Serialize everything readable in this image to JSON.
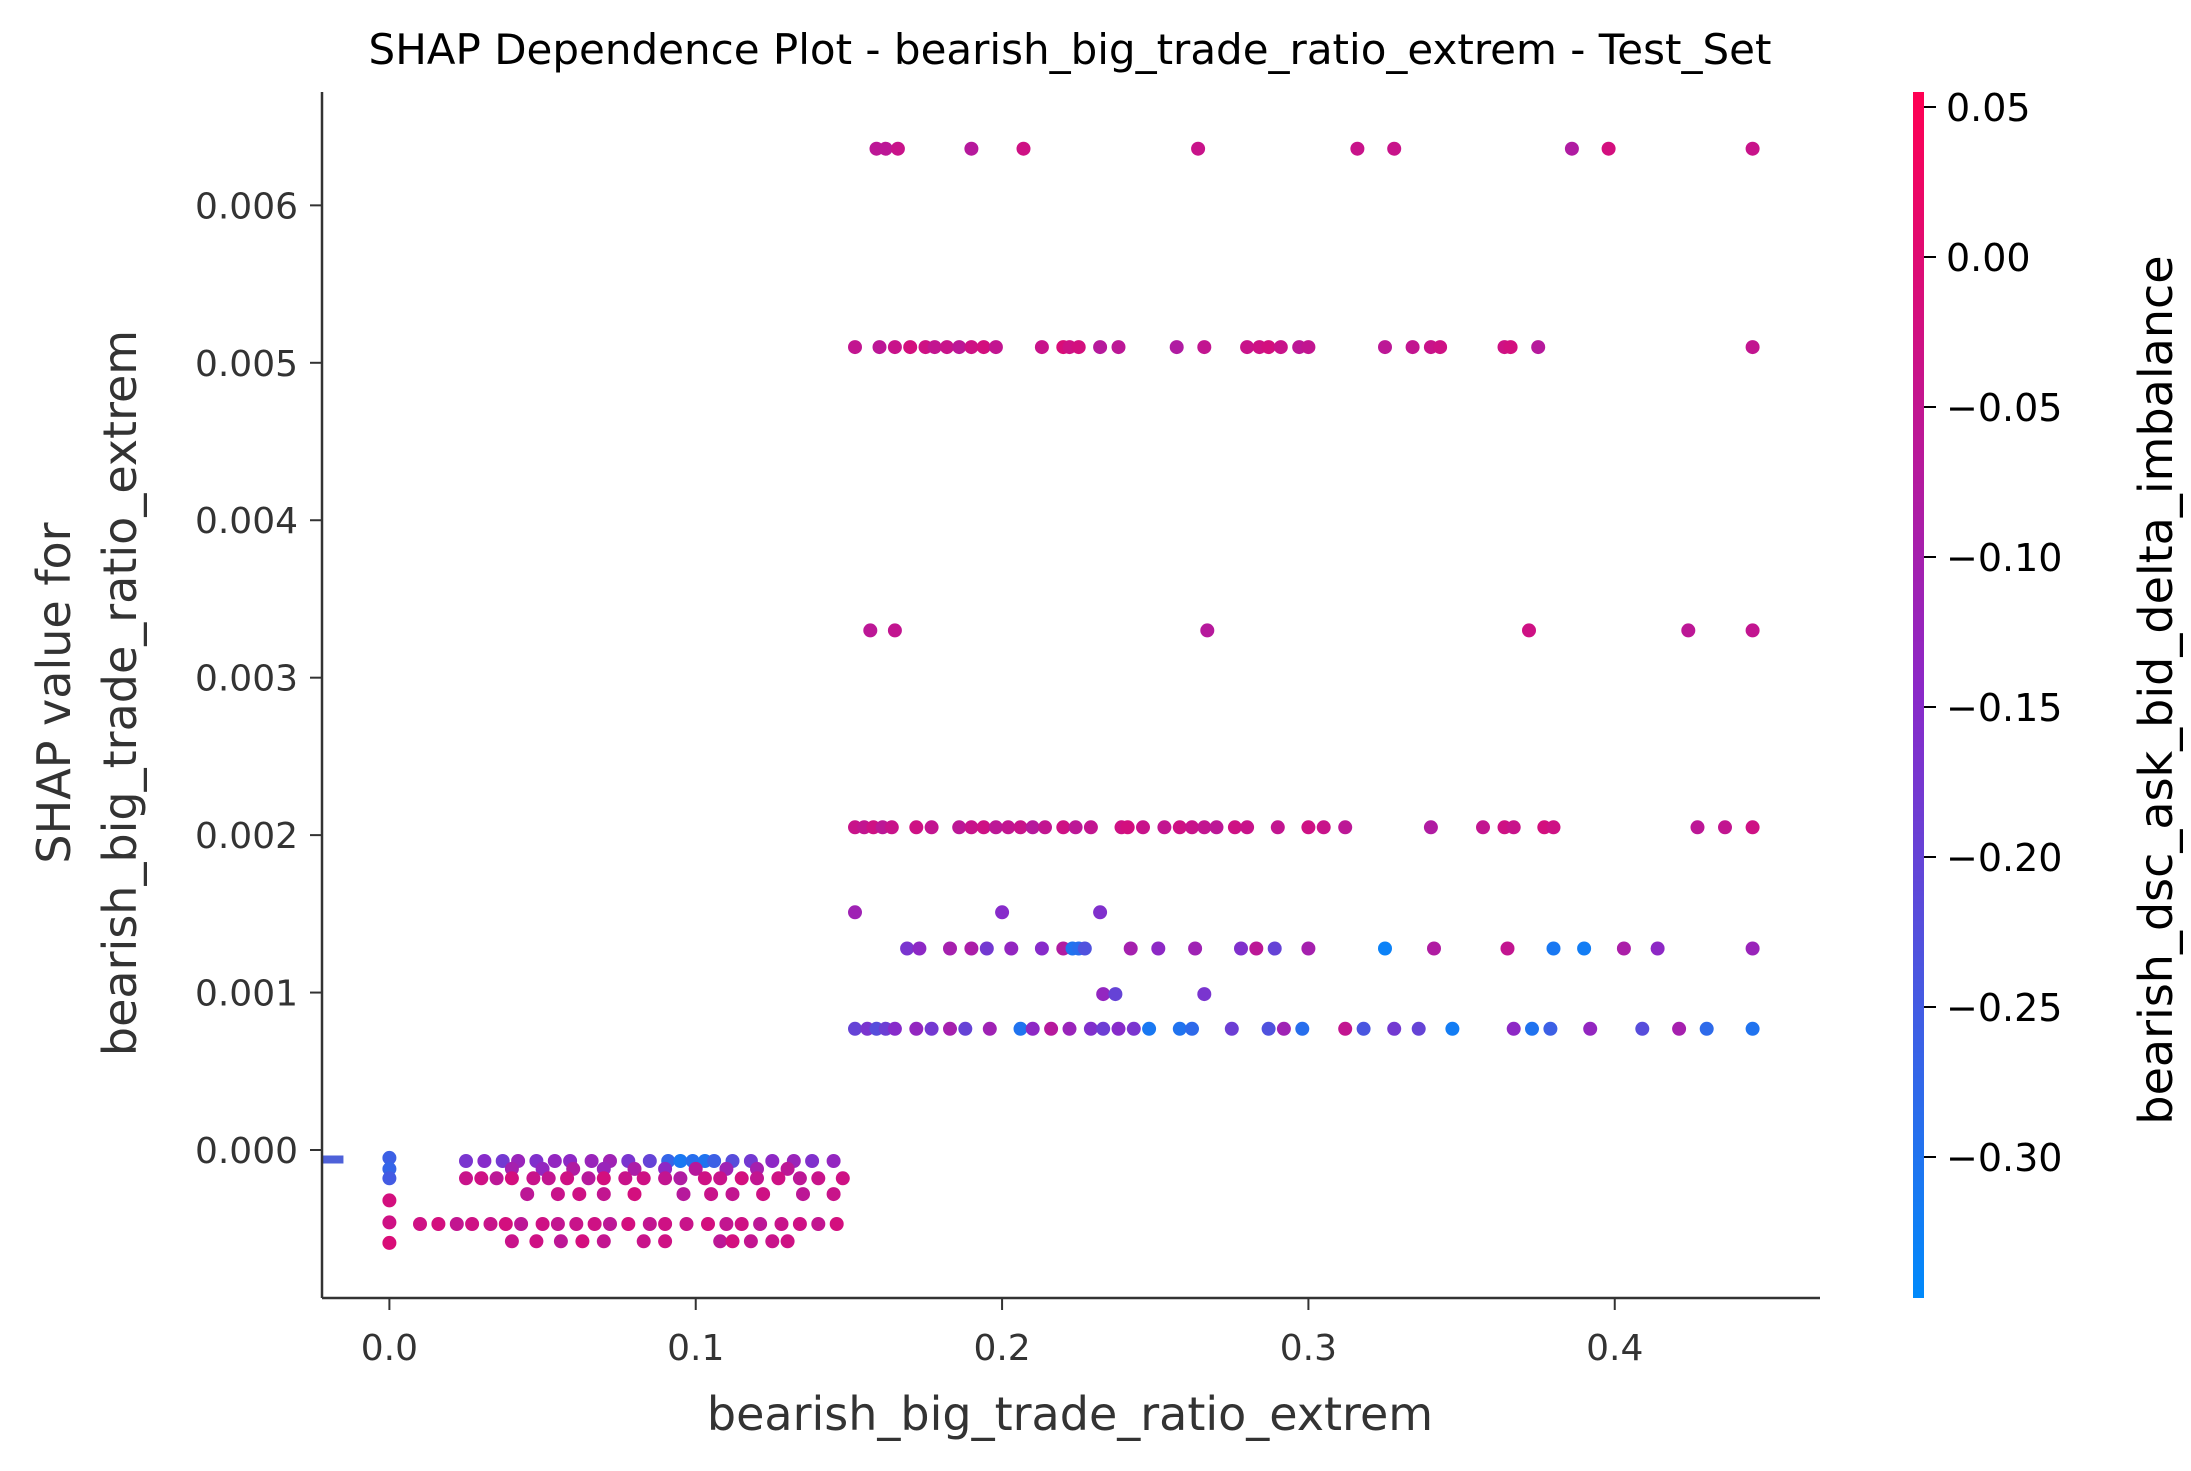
{
  "chart_data": {
    "type": "scatter",
    "title": "SHAP Dependence Plot - bearish_big_trade_ratio_extrem - Test_Set",
    "xlabel": "bearish_big_trade_ratio_extrem",
    "ylabel_line1": "SHAP value for",
    "ylabel_line2": "bearish_big_trade_ratio_extrem",
    "xlim": [
      -0.022,
      0.467
    ],
    "ylim": [
      -0.00094,
      0.00672
    ],
    "xticks": [
      {
        "value": 0.0,
        "label": "0.0"
      },
      {
        "value": 0.1,
        "label": "0.1"
      },
      {
        "value": 0.2,
        "label": "0.2"
      },
      {
        "value": 0.3,
        "label": "0.3"
      },
      {
        "value": 0.4,
        "label": "0.4"
      }
    ],
    "yticks": [
      {
        "value": 0.0,
        "label": "0.000"
      },
      {
        "value": 0.001,
        "label": "0.001"
      },
      {
        "value": 0.002,
        "label": "0.002"
      },
      {
        "value": 0.003,
        "label": "0.003"
      },
      {
        "value": 0.004,
        "label": "0.004"
      },
      {
        "value": 0.005,
        "label": "0.005"
      },
      {
        "value": 0.006,
        "label": "0.006"
      }
    ],
    "colorbar": {
      "label": "bearish_dsc_ask_bid_delta_imbalance",
      "range": [
        -0.347,
        0.055
      ],
      "low_color": "#008afb",
      "mid_color": "#8a29c9",
      "high_color": "#ff0052",
      "ticks": [
        {
          "value": 0.05,
          "label": "0.05"
        },
        {
          "value": 0.0,
          "label": "0.00"
        },
        {
          "value": -0.05,
          "label": "−0.05"
        },
        {
          "value": -0.1,
          "label": "−0.10"
        },
        {
          "value": -0.15,
          "label": "−0.15"
        },
        {
          "value": -0.2,
          "label": "−0.20"
        },
        {
          "value": -0.25,
          "label": "−0.25"
        },
        {
          "value": -0.3,
          "label": "−0.30"
        }
      ]
    },
    "missing_marker": {
      "y": -6e-05,
      "x_from": -0.022,
      "x_to": -0.015,
      "color": "#4e61d9"
    },
    "points": [
      [
        0.159,
        0.00636,
        -0.06
      ],
      [
        0.162,
        0.00636,
        -0.06
      ],
      [
        0.166,
        0.00636,
        -0.04
      ],
      [
        0.19,
        0.00636,
        -0.07
      ],
      [
        0.207,
        0.00636,
        -0.03
      ],
      [
        0.264,
        0.00636,
        -0.04
      ],
      [
        0.316,
        0.00636,
        -0.04
      ],
      [
        0.328,
        0.00636,
        -0.04
      ],
      [
        0.386,
        0.00636,
        -0.08
      ],
      [
        0.398,
        0.00636,
        -0.02
      ],
      [
        0.445,
        0.00636,
        -0.04
      ],
      [
        0.152,
        0.0051,
        -0.05
      ],
      [
        0.16,
        0.0051,
        -0.06
      ],
      [
        0.165,
        0.0051,
        -0.04
      ],
      [
        0.17,
        0.0051,
        -0.02
      ],
      [
        0.175,
        0.0051,
        -0.03
      ],
      [
        0.178,
        0.0051,
        -0.05
      ],
      [
        0.182,
        0.0051,
        -0.04
      ],
      [
        0.186,
        0.0051,
        -0.06
      ],
      [
        0.19,
        0.0051,
        -0.03
      ],
      [
        0.194,
        0.0051,
        -0.02
      ],
      [
        0.198,
        0.0051,
        -0.05
      ],
      [
        0.213,
        0.0051,
        -0.04
      ],
      [
        0.22,
        0.0051,
        -0.01
      ],
      [
        0.222,
        0.0051,
        -0.03
      ],
      [
        0.225,
        0.0051,
        -0.02
      ],
      [
        0.232,
        0.0051,
        -0.07
      ],
      [
        0.238,
        0.0051,
        -0.06
      ],
      [
        0.257,
        0.0051,
        -0.08
      ],
      [
        0.266,
        0.0051,
        -0.05
      ],
      [
        0.28,
        0.0051,
        -0.04
      ],
      [
        0.284,
        0.0051,
        -0.03
      ],
      [
        0.287,
        0.0051,
        -0.02
      ],
      [
        0.291,
        0.0051,
        -0.04
      ],
      [
        0.297,
        0.0051,
        -0.06
      ],
      [
        0.3,
        0.0051,
        -0.05
      ],
      [
        0.325,
        0.0051,
        -0.06
      ],
      [
        0.334,
        0.0051,
        -0.05
      ],
      [
        0.34,
        0.0051,
        -0.04
      ],
      [
        0.343,
        0.0051,
        -0.03
      ],
      [
        0.364,
        0.0051,
        -0.03
      ],
      [
        0.366,
        0.0051,
        -0.02
      ],
      [
        0.375,
        0.0051,
        -0.07
      ],
      [
        0.445,
        0.0051,
        -0.05
      ],
      [
        0.157,
        0.0033,
        -0.06
      ],
      [
        0.165,
        0.0033,
        -0.05
      ],
      [
        0.267,
        0.0033,
        -0.07
      ],
      [
        0.372,
        0.0033,
        -0.03
      ],
      [
        0.424,
        0.0033,
        -0.06
      ],
      [
        0.445,
        0.0033,
        -0.05
      ],
      [
        0.152,
        0.00205,
        -0.04
      ],
      [
        0.155,
        0.00205,
        -0.05
      ],
      [
        0.158,
        0.00205,
        -0.03
      ],
      [
        0.161,
        0.00205,
        -0.06
      ],
      [
        0.164,
        0.00205,
        -0.04
      ],
      [
        0.172,
        0.00205,
        -0.03
      ],
      [
        0.177,
        0.00205,
        -0.05
      ],
      [
        0.186,
        0.00205,
        -0.06
      ],
      [
        0.19,
        0.00205,
        -0.04
      ],
      [
        0.194,
        0.00205,
        -0.03
      ],
      [
        0.198,
        0.00205,
        -0.06
      ],
      [
        0.202,
        0.00205,
        -0.05
      ],
      [
        0.206,
        0.00205,
        -0.04
      ],
      [
        0.21,
        0.00205,
        -0.07
      ],
      [
        0.214,
        0.00205,
        -0.05
      ],
      [
        0.22,
        0.00205,
        -0.03
      ],
      [
        0.224,
        0.00205,
        -0.06
      ],
      [
        0.229,
        0.00205,
        -0.05
      ],
      [
        0.239,
        0.00205,
        -0.03
      ],
      [
        0.241,
        0.00205,
        -0.02
      ],
      [
        0.246,
        0.00205,
        -0.04
      ],
      [
        0.253,
        0.00205,
        -0.05
      ],
      [
        0.258,
        0.00205,
        -0.03
      ],
      [
        0.262,
        0.00205,
        -0.04
      ],
      [
        0.266,
        0.00205,
        -0.05
      ],
      [
        0.27,
        0.00205,
        -0.06
      ],
      [
        0.276,
        0.00205,
        -0.03
      ],
      [
        0.28,
        0.00205,
        -0.04
      ],
      [
        0.29,
        0.00205,
        -0.05
      ],
      [
        0.3,
        0.00205,
        -0.03
      ],
      [
        0.305,
        0.00205,
        -0.04
      ],
      [
        0.312,
        0.00205,
        -0.06
      ],
      [
        0.34,
        0.00205,
        -0.08
      ],
      [
        0.357,
        0.00205,
        -0.05
      ],
      [
        0.364,
        0.00205,
        -0.03
      ],
      [
        0.367,
        0.00205,
        -0.04
      ],
      [
        0.377,
        0.00205,
        -0.02
      ],
      [
        0.38,
        0.00205,
        -0.03
      ],
      [
        0.427,
        0.00205,
        -0.06
      ],
      [
        0.436,
        0.00205,
        -0.05
      ],
      [
        0.445,
        0.00205,
        -0.03
      ],
      [
        0.152,
        0.00151,
        -0.11
      ],
      [
        0.2,
        0.00151,
        -0.15
      ],
      [
        0.232,
        0.00151,
        -0.16
      ],
      [
        0.169,
        0.00128,
        -0.17
      ],
      [
        0.173,
        0.00128,
        -0.14
      ],
      [
        0.183,
        0.00128,
        -0.1
      ],
      [
        0.19,
        0.00128,
        -0.09
      ],
      [
        0.195,
        0.00128,
        -0.18
      ],
      [
        0.203,
        0.00128,
        -0.13
      ],
      [
        0.213,
        0.00128,
        -0.15
      ],
      [
        0.22,
        0.00128,
        -0.08
      ],
      [
        0.223,
        0.00128,
        -0.3
      ],
      [
        0.225,
        0.00128,
        -0.29
      ],
      [
        0.227,
        0.00128,
        -0.23
      ],
      [
        0.242,
        0.00128,
        -0.1
      ],
      [
        0.251,
        0.00128,
        -0.14
      ],
      [
        0.263,
        0.00128,
        -0.11
      ],
      [
        0.278,
        0.00128,
        -0.16
      ],
      [
        0.283,
        0.00128,
        -0.06
      ],
      [
        0.289,
        0.00128,
        -0.2
      ],
      [
        0.3,
        0.00128,
        -0.1
      ],
      [
        0.325,
        0.00128,
        -0.33
      ],
      [
        0.341,
        0.00128,
        -0.08
      ],
      [
        0.365,
        0.00128,
        -0.05
      ],
      [
        0.39,
        0.00128,
        -0.32
      ],
      [
        0.38,
        0.00128,
        -0.31
      ],
      [
        0.403,
        0.00128,
        -0.09
      ],
      [
        0.414,
        0.00128,
        -0.14
      ],
      [
        0.445,
        0.00128,
        -0.12
      ],
      [
        0.233,
        0.00099,
        -0.13
      ],
      [
        0.237,
        0.00099,
        -0.2
      ],
      [
        0.266,
        0.00099,
        -0.17
      ],
      [
        0.152,
        0.00077,
        -0.2
      ],
      [
        0.156,
        0.00077,
        -0.17
      ],
      [
        0.159,
        0.00077,
        -0.22
      ],
      [
        0.162,
        0.00077,
        -0.19
      ],
      [
        0.165,
        0.00077,
        -0.15
      ],
      [
        0.172,
        0.00077,
        -0.13
      ],
      [
        0.177,
        0.00077,
        -0.18
      ],
      [
        0.183,
        0.00077,
        -0.1
      ],
      [
        0.188,
        0.00077,
        -0.2
      ],
      [
        0.196,
        0.00077,
        -0.11
      ],
      [
        0.206,
        0.00077,
        -0.3
      ],
      [
        0.21,
        0.00077,
        -0.14
      ],
      [
        0.216,
        0.00077,
        -0.07
      ],
      [
        0.222,
        0.00077,
        -0.12
      ],
      [
        0.229,
        0.00077,
        -0.16
      ],
      [
        0.233,
        0.00077,
        -0.19
      ],
      [
        0.238,
        0.00077,
        -0.15
      ],
      [
        0.243,
        0.00077,
        -0.17
      ],
      [
        0.248,
        0.00077,
        -0.31
      ],
      [
        0.258,
        0.00077,
        -0.3
      ],
      [
        0.262,
        0.00077,
        -0.28
      ],
      [
        0.275,
        0.00077,
        -0.19
      ],
      [
        0.287,
        0.00077,
        -0.23
      ],
      [
        0.292,
        0.00077,
        -0.11
      ],
      [
        0.298,
        0.00077,
        -0.29
      ],
      [
        0.312,
        0.00077,
        -0.05
      ],
      [
        0.318,
        0.00077,
        -0.24
      ],
      [
        0.328,
        0.00077,
        -0.18
      ],
      [
        0.336,
        0.00077,
        -0.2
      ],
      [
        0.347,
        0.00077,
        -0.32
      ],
      [
        0.367,
        0.00077,
        -0.14
      ],
      [
        0.373,
        0.00077,
        -0.3
      ],
      [
        0.379,
        0.00077,
        -0.26
      ],
      [
        0.392,
        0.00077,
        -0.13
      ],
      [
        0.409,
        0.00077,
        -0.22
      ],
      [
        0.421,
        0.00077,
        -0.1
      ],
      [
        0.43,
        0.00077,
        -0.28
      ],
      [
        0.445,
        0.00077,
        -0.3
      ],
      [
        0.0,
        -5e-05,
        -0.26
      ],
      [
        0.0,
        -0.00012,
        -0.27
      ],
      [
        0.0,
        -0.00018,
        -0.25
      ],
      [
        0.0,
        -0.00032,
        -0.02
      ],
      [
        0.0,
        -0.00046,
        -0.03
      ],
      [
        0.0,
        -0.00059,
        -0.01
      ],
      [
        0.025,
        -7e-05,
        -0.17
      ],
      [
        0.031,
        -7e-05,
        -0.15
      ],
      [
        0.037,
        -7e-05,
        -0.18
      ],
      [
        0.042,
        -7e-05,
        -0.12
      ],
      [
        0.048,
        -7e-05,
        -0.16
      ],
      [
        0.054,
        -7e-05,
        -0.13
      ],
      [
        0.059,
        -7e-05,
        -0.14
      ],
      [
        0.066,
        -7e-05,
        -0.12
      ],
      [
        0.072,
        -7e-05,
        -0.11
      ],
      [
        0.078,
        -7e-05,
        -0.17
      ],
      [
        0.085,
        -7e-05,
        -0.2
      ],
      [
        0.091,
        -7e-05,
        -0.27
      ],
      [
        0.095,
        -7e-05,
        -0.31
      ],
      [
        0.099,
        -7e-05,
        -0.29
      ],
      [
        0.103,
        -7e-05,
        -0.3
      ],
      [
        0.106,
        -7e-05,
        -0.26
      ],
      [
        0.112,
        -7e-05,
        -0.22
      ],
      [
        0.118,
        -7e-05,
        -0.18
      ],
      [
        0.125,
        -7e-05,
        -0.14
      ],
      [
        0.132,
        -7e-05,
        -0.12
      ],
      [
        0.138,
        -7e-05,
        -0.16
      ],
      [
        0.145,
        -7e-05,
        -0.13
      ],
      [
        0.04,
        -0.00012,
        -0.1
      ],
      [
        0.05,
        -0.00012,
        -0.13
      ],
      [
        0.06,
        -0.00012,
        -0.08
      ],
      [
        0.07,
        -0.00012,
        -0.12
      ],
      [
        0.08,
        -0.00012,
        -0.09
      ],
      [
        0.09,
        -0.00012,
        -0.14
      ],
      [
        0.1,
        -0.00012,
        -0.07
      ],
      [
        0.11,
        -0.00012,
        -0.11
      ],
      [
        0.12,
        -0.00012,
        -0.1
      ],
      [
        0.13,
        -0.00012,
        -0.06
      ],
      [
        0.025,
        -0.00018,
        -0.04
      ],
      [
        0.03,
        -0.00018,
        -0.03
      ],
      [
        0.035,
        -0.00018,
        -0.06
      ],
      [
        0.04,
        -0.00018,
        -0.02
      ],
      [
        0.047,
        -0.00018,
        -0.04
      ],
      [
        0.052,
        -0.00018,
        -0.05
      ],
      [
        0.058,
        -0.00018,
        -0.03
      ],
      [
        0.065,
        -0.00018,
        -0.07
      ],
      [
        0.07,
        -0.00018,
        -0.02
      ],
      [
        0.077,
        -0.00018,
        -0.04
      ],
      [
        0.083,
        -0.00018,
        -0.03
      ],
      [
        0.09,
        -0.00018,
        -0.05
      ],
      [
        0.095,
        -0.00018,
        -0.08
      ],
      [
        0.103,
        -0.00018,
        -0.03
      ],
      [
        0.108,
        -0.00018,
        -0.04
      ],
      [
        0.115,
        -0.00018,
        -0.02
      ],
      [
        0.12,
        -0.00018,
        -0.05
      ],
      [
        0.127,
        -0.00018,
        -0.03
      ],
      [
        0.134,
        -0.00018,
        -0.06
      ],
      [
        0.14,
        -0.00018,
        -0.04
      ],
      [
        0.148,
        -0.00018,
        -0.03
      ],
      [
        0.045,
        -0.00028,
        -0.06
      ],
      [
        0.055,
        -0.00028,
        -0.04
      ],
      [
        0.062,
        -0.00028,
        -0.03
      ],
      [
        0.07,
        -0.00028,
        -0.05
      ],
      [
        0.08,
        -0.00028,
        -0.02
      ],
      [
        0.096,
        -0.00028,
        -0.07
      ],
      [
        0.105,
        -0.00028,
        -0.04
      ],
      [
        0.112,
        -0.00028,
        -0.05
      ],
      [
        0.122,
        -0.00028,
        -0.03
      ],
      [
        0.135,
        -0.00028,
        -0.06
      ],
      [
        0.145,
        -0.00028,
        -0.04
      ],
      [
        0.01,
        -0.00047,
        -0.03
      ],
      [
        0.016,
        -0.00047,
        -0.02
      ],
      [
        0.022,
        -0.00047,
        -0.05
      ],
      [
        0.027,
        -0.00047,
        -0.03
      ],
      [
        0.033,
        -0.00047,
        -0.04
      ],
      [
        0.038,
        -0.00047,
        -0.02
      ],
      [
        0.043,
        -0.00047,
        -0.06
      ],
      [
        0.05,
        -0.00047,
        -0.03
      ],
      [
        0.055,
        -0.00047,
        -0.05
      ],
      [
        0.061,
        -0.00047,
        -0.04
      ],
      [
        0.067,
        -0.00047,
        -0.03
      ],
      [
        0.072,
        -0.00047,
        -0.06
      ],
      [
        0.078,
        -0.00047,
        -0.02
      ],
      [
        0.085,
        -0.00047,
        -0.05
      ],
      [
        0.09,
        -0.00047,
        -0.03
      ],
      [
        0.097,
        -0.00047,
        -0.04
      ],
      [
        0.104,
        -0.00047,
        -0.02
      ],
      [
        0.11,
        -0.00047,
        -0.05
      ],
      [
        0.115,
        -0.00047,
        -0.03
      ],
      [
        0.121,
        -0.00047,
        -0.06
      ],
      [
        0.128,
        -0.00047,
        -0.04
      ],
      [
        0.134,
        -0.00047,
        -0.03
      ],
      [
        0.14,
        -0.00047,
        -0.05
      ],
      [
        0.146,
        -0.00047,
        -0.02
      ],
      [
        0.04,
        -0.00058,
        -0.04
      ],
      [
        0.048,
        -0.00058,
        -0.03
      ],
      [
        0.056,
        -0.00058,
        -0.06
      ],
      [
        0.063,
        -0.00058,
        -0.02
      ],
      [
        0.07,
        -0.00058,
        -0.05
      ],
      [
        0.083,
        -0.00058,
        -0.04
      ],
      [
        0.09,
        -0.00058,
        -0.03
      ],
      [
        0.108,
        -0.00058,
        -0.06
      ],
      [
        0.112,
        -0.00058,
        -0.02
      ],
      [
        0.118,
        -0.00058,
        -0.05
      ],
      [
        0.125,
        -0.00058,
        -0.04
      ],
      [
        0.13,
        -0.00058,
        -0.03
      ]
    ]
  }
}
